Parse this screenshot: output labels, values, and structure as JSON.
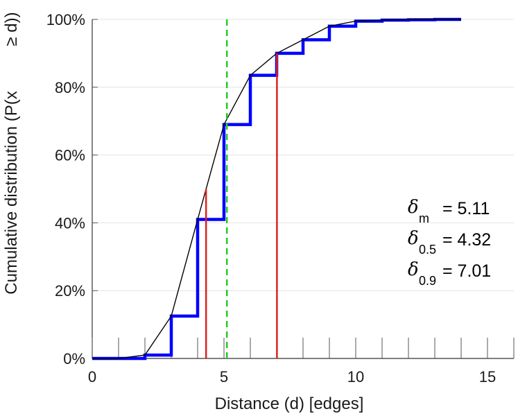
{
  "chart_data": {
    "type": "line",
    "title": "",
    "xlabel": "Distance (d) [edges]",
    "ylabel": "Cumulative distribution (P(x ≥ d))",
    "ylabel_lines": [
      "Cumulative distribution (P(x",
      "≥ d))"
    ],
    "xlim": [
      0,
      16
    ],
    "ylim": [
      0,
      1
    ],
    "x_ticks": [
      0,
      5,
      10,
      15
    ],
    "x_tick_labels": [
      "0",
      "5",
      "10",
      "15"
    ],
    "x_minor_ticks": [
      1,
      2,
      3,
      4,
      6,
      7,
      8,
      9,
      11,
      12,
      13,
      14,
      16
    ],
    "y_ticks": [
      0,
      0.2,
      0.4,
      0.6,
      0.8,
      1.0
    ],
    "y_tick_labels": [
      "0%",
      "20%",
      "40%",
      "60%",
      "80%",
      "100%"
    ],
    "grid": "horizontal",
    "series": [
      {
        "kind": "step",
        "color": "#0000ff",
        "x": [
          0,
          1,
          2,
          3,
          4,
          5,
          6,
          7,
          8,
          9,
          10,
          11,
          12,
          13,
          14
        ],
        "y": [
          0.0,
          0.0,
          0.01,
          0.125,
          0.41,
          0.69,
          0.835,
          0.9,
          0.94,
          0.98,
          0.995,
          0.998,
          0.999,
          1.0,
          1.0
        ]
      },
      {
        "kind": "line",
        "color": "#000000",
        "x": [
          0,
          1,
          2,
          3,
          4,
          5,
          6,
          7,
          8,
          9,
          10,
          11,
          12,
          13,
          14
        ],
        "y": [
          0.0,
          0.0,
          0.01,
          0.125,
          0.41,
          0.69,
          0.835,
          0.9,
          0.94,
          0.98,
          0.995,
          0.998,
          0.999,
          1.0,
          1.0
        ]
      }
    ],
    "markers": [
      {
        "kind": "vline-dashed",
        "color": "#22cc22",
        "x": 5.11,
        "y_to": 1.0
      },
      {
        "kind": "vline",
        "color": "#dd2222",
        "x": 4.32,
        "y_to": 0.5
      },
      {
        "kind": "vline",
        "color": "#dd2222",
        "x": 7.01,
        "y_to": 0.9
      }
    ],
    "annotations": [
      {
        "symbol": "δ",
        "sub": "m",
        "text": "= 5.11"
      },
      {
        "symbol": "δ",
        "sub": "0.5",
        "text": "= 4.32"
      },
      {
        "symbol": "δ",
        "sub": "0.9",
        "text": "= 7.01"
      }
    ]
  }
}
